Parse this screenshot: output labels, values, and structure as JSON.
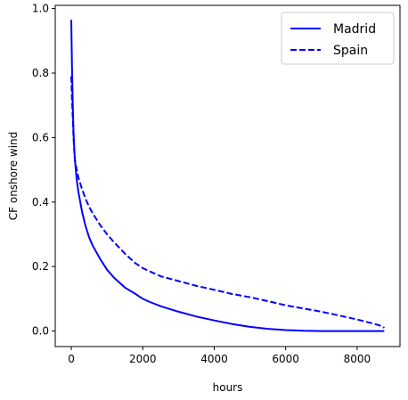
{
  "chart_data": {
    "type": "line",
    "xlabel": "hours",
    "ylabel": "CF onshore wind",
    "xlim": [
      -450,
      9200
    ],
    "ylim": [
      -0.048,
      1.01
    ],
    "xticks": [
      0,
      2000,
      4000,
      6000,
      8000
    ],
    "xtick_labels": [
      "0",
      "2000",
      "4000",
      "6000",
      "8000"
    ],
    "yticks": [
      0.0,
      0.2,
      0.4,
      0.6,
      0.8,
      1.0
    ],
    "ytick_labels": [
      "0.0",
      "0.2",
      "0.4",
      "0.6",
      "0.8",
      "1.0"
    ],
    "grid": false,
    "legend_position": "top-right",
    "series": [
      {
        "name": "Madrid",
        "color": "#0000ff",
        "style": "solid",
        "x": [
          0,
          20,
          40,
          60,
          80,
          100,
          150,
          200,
          300,
          400,
          500,
          600,
          800,
          1000,
          1200,
          1500,
          1800,
          2000,
          2200,
          2500,
          3000,
          3500,
          4000,
          4500,
          5000,
          5500,
          6000,
          6500,
          7000,
          7500,
          8000,
          8500,
          8760
        ],
        "y": [
          0.965,
          0.82,
          0.7,
          0.62,
          0.57,
          0.53,
          0.47,
          0.43,
          0.37,
          0.325,
          0.29,
          0.265,
          0.225,
          0.19,
          0.165,
          0.135,
          0.115,
          0.1,
          0.09,
          0.077,
          0.06,
          0.045,
          0.033,
          0.022,
          0.013,
          0.007,
          0.003,
          0.001,
          0.0,
          0.0,
          0.0,
          0.0,
          0.0
        ]
      },
      {
        "name": "Spain",
        "color": "#0000ff",
        "style": "dashed",
        "x": [
          0,
          20,
          40,
          60,
          80,
          100,
          150,
          200,
          300,
          400,
          500,
          600,
          800,
          1000,
          1200,
          1500,
          1800,
          2000,
          2200,
          2500,
          3000,
          3500,
          4000,
          4500,
          5000,
          5500,
          6000,
          6500,
          7000,
          7500,
          8000,
          8500,
          8700,
          8760
        ],
        "y": [
          0.79,
          0.72,
          0.66,
          0.6,
          0.56,
          0.53,
          0.5,
          0.475,
          0.44,
          0.41,
          0.385,
          0.365,
          0.33,
          0.3,
          0.275,
          0.24,
          0.21,
          0.195,
          0.185,
          0.17,
          0.155,
          0.14,
          0.128,
          0.115,
          0.105,
          0.093,
          0.08,
          0.07,
          0.06,
          0.048,
          0.036,
          0.022,
          0.015,
          0.01
        ]
      }
    ]
  }
}
